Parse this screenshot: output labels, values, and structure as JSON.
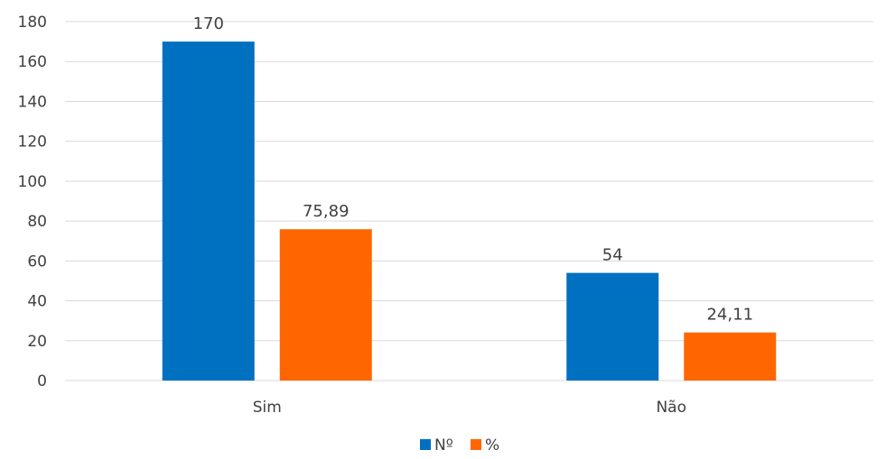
{
  "chart_data": {
    "type": "bar",
    "categories": [
      "Sim",
      "Não"
    ],
    "series": [
      {
        "name": "Nº",
        "values": [
          170,
          54
        ],
        "labels": [
          "170",
          "54"
        ],
        "color": "#0070C0"
      },
      {
        "name": "%",
        "values": [
          75.89,
          24.11
        ],
        "labels": [
          "75,89",
          "24,11"
        ],
        "color": "#FF6600"
      }
    ],
    "ylim": [
      0,
      180
    ],
    "yticks": [
      0,
      20,
      40,
      60,
      80,
      100,
      120,
      140,
      160,
      180
    ],
    "grid": true,
    "legend": "bottom",
    "title": "",
    "xlabel": "",
    "ylabel": ""
  }
}
